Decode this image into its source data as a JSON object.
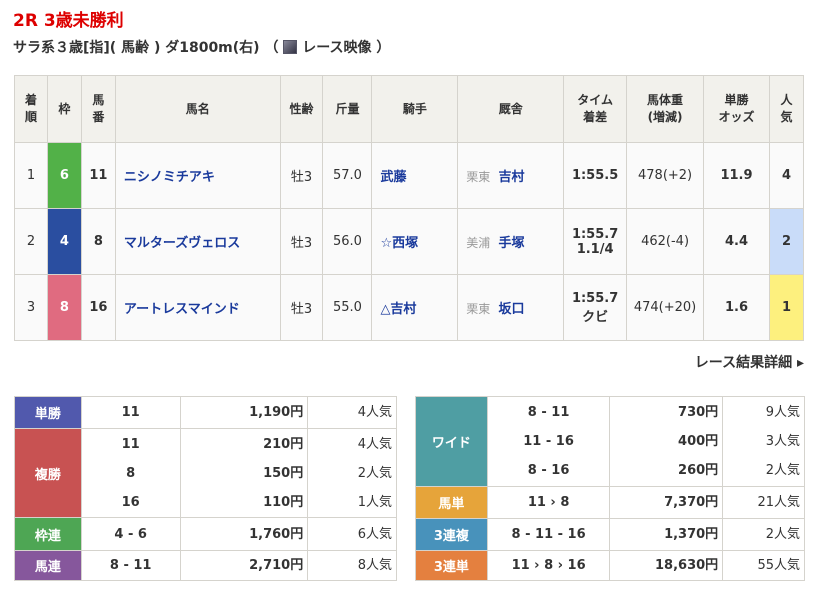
{
  "race": {
    "title": "2R 3歳未勝利",
    "conditions_pre": "サラ系３歳[指]( 馬齢 ) ダ1800m(右) （",
    "video_label": "レース映像",
    "conditions_post": "）"
  },
  "headers": [
    "着\n順",
    "枠",
    "馬\n番",
    "馬名",
    "性齢",
    "斤量",
    "騎手",
    "厩舎",
    "タイム\n着差",
    "馬体重\n(増減)",
    "単勝\nオッズ",
    "人\n気"
  ],
  "results": [
    {
      "rank": "1",
      "waku": "6",
      "waku_color": "#52b148",
      "num": "11",
      "name": "ニシノミチアキ",
      "sexage": "牡3",
      "weight": "57.0",
      "jockey": "武藤",
      "region": "栗東",
      "trainer": "吉村",
      "time": "1:55.5",
      "margin": "",
      "body": "478(+2)",
      "odds": "11.9",
      "pop": "4",
      "pop_bg": "#fafafa"
    },
    {
      "rank": "2",
      "waku": "4",
      "waku_color": "#2a4ea0",
      "num": "8",
      "name": "マルターズヴェロス",
      "sexage": "牡3",
      "weight": "56.0",
      "jockey": "☆西塚",
      "region": "美浦",
      "trainer": "手塚",
      "time": "1:55.7",
      "margin": "1.1/4",
      "body": "462(-4)",
      "odds": "4.4",
      "pop": "2",
      "pop_bg": "#c9dcf9"
    },
    {
      "rank": "3",
      "waku": "8",
      "waku_color": "#e06b80",
      "num": "16",
      "name": "アートレスマインド",
      "sexage": "牡3",
      "weight": "55.0",
      "jockey": "△吉村",
      "region": "栗東",
      "trainer": "坂口",
      "time": "1:55.7",
      "margin": "クビ",
      "body": "474(+20)",
      "odds": "1.6",
      "pop": "1",
      "pop_bg": "#fdf07e"
    }
  ],
  "more_link": "レース結果詳細 ▸",
  "payouts_left": [
    {
      "label": "単勝",
      "color": "#5159ad",
      "rows": [
        [
          "11",
          "1,190円",
          "4人気"
        ]
      ]
    },
    {
      "label": "複勝",
      "color": "#c85252",
      "rows": [
        [
          "11",
          "210円",
          "4人気"
        ],
        [
          "8",
          "150円",
          "2人気"
        ],
        [
          "16",
          "110円",
          "1人気"
        ]
      ]
    },
    {
      "label": "枠連",
      "color": "#4ea654",
      "rows": [
        [
          "4 - 6",
          "1,760円",
          "6人気"
        ]
      ]
    },
    {
      "label": "馬連",
      "color": "#86579c",
      "rows": [
        [
          "8 - 11",
          "2,710円",
          "8人気"
        ]
      ]
    }
  ],
  "payouts_right": [
    {
      "label": "ワイド",
      "color": "#4f9ea3",
      "rows": [
        [
          "8 - 11",
          "730円",
          "9人気"
        ],
        [
          "11 - 16",
          "400円",
          "3人気"
        ],
        [
          "8 - 16",
          "260円",
          "2人気"
        ]
      ]
    },
    {
      "label": "馬単",
      "color": "#e6a43a",
      "rows": [
        [
          "11 › 8",
          "7,370円",
          "21人気"
        ]
      ]
    },
    {
      "label": "3連複",
      "color": "#4892bb",
      "rows": [
        [
          "8 - 11 - 16",
          "1,370円",
          "2人気"
        ]
      ]
    },
    {
      "label": "3連単",
      "color": "#e4803f",
      "rows": [
        [
          "11 › 8 › 16",
          "18,630円",
          "55人気"
        ]
      ]
    }
  ]
}
